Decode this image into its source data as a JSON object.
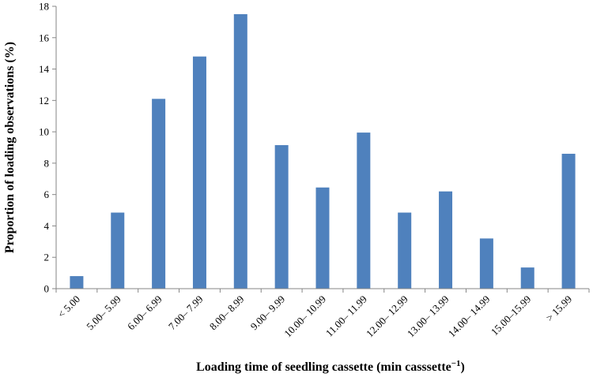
{
  "chart_data": {
    "type": "bar",
    "title": "",
    "xlabel": "Loading time of seedling cassette (min casssette",
    "xlabel_sup": "−1",
    "xlabel_close": ")",
    "ylabel": "Proportion of loading observations (%)",
    "categories": [
      "< 5.00",
      "5.00– 5.99",
      "6.00– 6.99",
      "7.00– 7.99",
      "8.00– 8.99",
      "9.00– 9.99",
      "10.00– 10.99",
      "11.00– 11.99",
      "12.00– 12.99",
      "13.00– 13.99",
      "14.00– 14.99",
      "15.00–15.99",
      "> 15.99"
    ],
    "values": [
      0.8,
      4.85,
      12.1,
      14.8,
      17.5,
      9.15,
      6.45,
      9.95,
      4.85,
      6.2,
      3.2,
      1.35,
      8.6
    ],
    "ylim": [
      0,
      18
    ],
    "yticks": [
      0,
      2,
      4,
      6,
      8,
      10,
      12,
      14,
      16,
      18
    ],
    "grid": false,
    "legend": "none",
    "bar_color": "#4F81BD"
  }
}
